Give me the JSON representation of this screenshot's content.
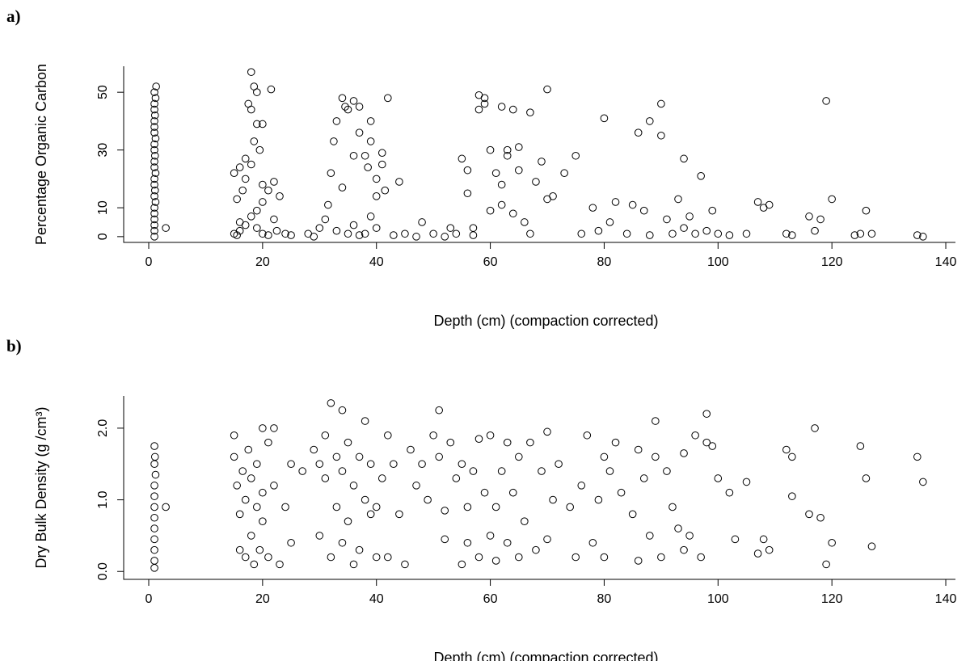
{
  "chart_data": [
    {
      "type": "scatter",
      "panel_label": "a)",
      "xlabel": "Depth (cm) (compaction corrected)",
      "ylabel": "Percentage Organic Carbon",
      "color": "#000000",
      "xlim": [
        -4.4,
        141.7
      ],
      "ylim": [
        -2,
        59
      ],
      "xticks": [
        0,
        20,
        40,
        60,
        80,
        100,
        120,
        140
      ],
      "yticks": [
        0,
        10,
        30,
        50
      ],
      "x": [
        1,
        1,
        1,
        1,
        1,
        1,
        1.2,
        1,
        1.1,
        1,
        1,
        1.2,
        1,
        1,
        1.1,
        1,
        1,
        1.2,
        1,
        1,
        1,
        1.1,
        1,
        1,
        1.2,
        1,
        1.3,
        3,
        15,
        15.5,
        16,
        16,
        15.5,
        15,
        16,
        17,
        17,
        16.5,
        17.5,
        18,
        18,
        18.5,
        19,
        18.5,
        19,
        20,
        19.5,
        18,
        20,
        21,
        20,
        19,
        18,
        17,
        19,
        20,
        21,
        22,
        21.5,
        22,
        23,
        22.5,
        24,
        25,
        28,
        29,
        30,
        31,
        31.5,
        32,
        32.5,
        33,
        34,
        34,
        34.5,
        35,
        36,
        36,
        37,
        37,
        38,
        38.5,
        39,
        39,
        40,
        40,
        41,
        41,
        41.5,
        42,
        44,
        33,
        35,
        36,
        37,
        38,
        39,
        40,
        43,
        45,
        47,
        48,
        50,
        52,
        53,
        54,
        55,
        56,
        56,
        57,
        57,
        58,
        58,
        59,
        59,
        60,
        60,
        61,
        62,
        62,
        62,
        63,
        63,
        64,
        64,
        65,
        65,
        66,
        67,
        67,
        68,
        69,
        70,
        70,
        71,
        73,
        75,
        76,
        78,
        79,
        80,
        81,
        82,
        84,
        85,
        86,
        87,
        88,
        88,
        90,
        90,
        91,
        92,
        93,
        94,
        94,
        95,
        96,
        97,
        98,
        99,
        100,
        102,
        105,
        107,
        108,
        109,
        112,
        113,
        116,
        117,
        118,
        119,
        120,
        124,
        125,
        126,
        127,
        135,
        136
      ],
      "values": [
        0,
        2,
        4,
        6,
        8,
        10,
        12,
        14,
        16,
        18,
        20,
        22,
        24,
        26,
        28,
        30,
        32,
        34,
        36,
        38,
        40,
        42,
        44,
        46,
        48,
        50,
        52,
        3,
        1,
        0.5,
        2,
        5,
        13,
        22,
        24,
        27,
        20,
        16,
        46,
        44,
        57,
        52,
        50,
        33,
        39,
        39,
        30,
        25,
        18,
        16,
        12,
        9,
        7,
        4,
        3,
        1,
        0.5,
        6,
        51,
        19,
        14,
        2,
        1,
        0.5,
        1,
        0,
        3,
        6,
        11,
        22,
        33,
        40,
        17,
        48,
        45,
        44,
        28,
        47,
        45,
        36,
        28,
        24,
        40,
        33,
        20,
        14,
        25,
        29,
        16,
        48,
        19,
        2,
        1,
        4,
        0.5,
        1,
        7,
        3,
        0.5,
        1,
        0,
        5,
        1,
        0,
        3,
        1,
        27,
        23,
        15,
        0.5,
        3,
        49,
        44,
        46,
        48,
        30,
        9,
        22,
        45,
        18,
        11,
        28,
        30,
        8,
        44,
        31,
        23,
        5,
        1,
        43,
        19,
        26,
        13,
        51,
        14,
        22,
        28,
        1,
        10,
        2,
        41,
        5,
        12,
        1,
        11,
        36,
        9,
        0.5,
        40,
        46,
        35,
        6,
        1,
        13,
        27,
        3,
        7,
        1,
        21,
        2,
        9,
        1,
        0.5,
        1,
        12,
        10,
        11,
        1,
        0.5,
        7,
        2,
        6,
        47,
        13,
        0.5,
        1,
        9,
        1,
        0.5,
        0
      ]
    },
    {
      "type": "scatter",
      "panel_label": "b)",
      "xlabel": "Depth (cm) (compaction corrected)",
      "ylabel": "Dry Bulk Density (g /cm³)",
      "color": "#000000",
      "xlim": [
        -4.4,
        141.7
      ],
      "ylim": [
        -0.11,
        2.45
      ],
      "xticks": [
        0,
        20,
        40,
        60,
        80,
        100,
        120,
        140
      ],
      "yticks": [
        {
          "value": 0,
          "label": "0.0"
        },
        {
          "value": 1,
          "label": "1.0"
        },
        {
          "value": 2,
          "label": "2.0"
        }
      ],
      "x": [
        1,
        1,
        1,
        1,
        1,
        1,
        1,
        1,
        1,
        1.2,
        1,
        1.1,
        1,
        3,
        15,
        15,
        15.5,
        16,
        16,
        16.5,
        17,
        17,
        17.5,
        18,
        18,
        18.5,
        19,
        19,
        19.5,
        20,
        20,
        20,
        21,
        21,
        22,
        22,
        23,
        24,
        25,
        25,
        27,
        29,
        30,
        30,
        31,
        31,
        32,
        32,
        33,
        33,
        34,
        34,
        34,
        35,
        35,
        36,
        36,
        37,
        37,
        38,
        38,
        39,
        39,
        40,
        40,
        41,
        42,
        42,
        43,
        44,
        45,
        46,
        47,
        48,
        49,
        50,
        51,
        51,
        52,
        52,
        53,
        54,
        55,
        55,
        56,
        56,
        57,
        58,
        58,
        59,
        60,
        60,
        61,
        61,
        62,
        63,
        63,
        64,
        65,
        65,
        66,
        67,
        68,
        69,
        70,
        70,
        71,
        72,
        74,
        75,
        76,
        77,
        78,
        79,
        80,
        80,
        81,
        82,
        83,
        85,
        86,
        86,
        87,
        88,
        89,
        89,
        90,
        91,
        92,
        93,
        94,
        94,
        95,
        96,
        97,
        98,
        98,
        99,
        100,
        102,
        103,
        105,
        107,
        108,
        109,
        112,
        113,
        113,
        116,
        117,
        118,
        119,
        120,
        125,
        126,
        127,
        135,
        136
      ],
      "values": [
        0.05,
        0.15,
        0.3,
        0.45,
        0.6,
        0.75,
        0.9,
        1.05,
        1.2,
        1.35,
        1.5,
        1.6,
        1.75,
        0.9,
        1.9,
        1.6,
        1.2,
        0.8,
        0.3,
        1.4,
        1.0,
        0.2,
        1.7,
        1.3,
        0.5,
        0.1,
        1.5,
        0.9,
        0.3,
        2.0,
        1.1,
        0.7,
        1.8,
        0.2,
        1.2,
        2.0,
        0.1,
        0.9,
        0.4,
        1.5,
        1.4,
        1.7,
        1.5,
        0.5,
        1.9,
        1.3,
        2.35,
        0.2,
        1.6,
        0.9,
        2.25,
        1.4,
        0.4,
        1.8,
        0.7,
        1.2,
        0.1,
        1.6,
        0.3,
        2.1,
        1.0,
        0.8,
        1.5,
        0.9,
        0.2,
        1.3,
        1.9,
        0.2,
        1.5,
        0.8,
        0.1,
        1.7,
        1.2,
        1.5,
        1.0,
        1.9,
        2.25,
        1.6,
        0.45,
        0.85,
        1.8,
        1.3,
        0.1,
        1.5,
        0.9,
        0.4,
        1.4,
        1.85,
        0.2,
        1.1,
        0.5,
        1.9,
        0.9,
        0.15,
        1.4,
        0.4,
        1.8,
        1.1,
        0.2,
        1.6,
        0.7,
        1.8,
        0.3,
        1.4,
        1.95,
        0.45,
        1.0,
        1.5,
        0.9,
        0.2,
        1.2,
        1.9,
        0.4,
        1.0,
        0.2,
        1.6,
        1.4,
        1.8,
        1.1,
        0.8,
        0.15,
        1.7,
        1.3,
        0.5,
        1.6,
        2.1,
        0.2,
        1.4,
        0.9,
        0.6,
        0.3,
        1.65,
        0.5,
        1.9,
        0.2,
        1.8,
        2.2,
        1.75,
        1.3,
        1.1,
        0.45,
        1.25,
        0.25,
        0.45,
        0.3,
        1.7,
        1.05,
        1.6,
        0.8,
        2.0,
        0.75,
        0.1,
        0.4,
        1.75,
        1.3,
        0.35,
        1.6,
        1.25
      ]
    }
  ]
}
